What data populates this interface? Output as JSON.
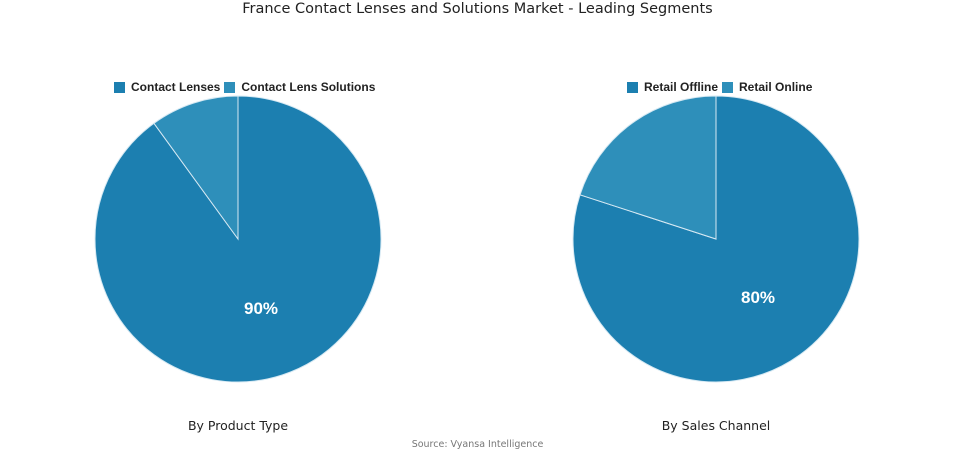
{
  "title": "France Contact Lenses and Solutions Market - Leading Segments",
  "source": "Source: Vyansa Intelligence",
  "colors": {
    "primary": "#1c7fb0",
    "secondary": "#2e8fba"
  },
  "charts": [
    {
      "subtitle": "By Product Type",
      "legend": [
        "Contact Lenses",
        "Contact Lens Solutions"
      ],
      "label": "90%"
    },
    {
      "subtitle": "By Sales Channel",
      "legend": [
        "Retail Offline",
        "Retail Online"
      ],
      "label": "80%"
    }
  ],
  "chart_data": [
    {
      "type": "pie",
      "title": "By Product Type",
      "categories": [
        "Contact Lenses",
        "Contact Lens Solutions"
      ],
      "values": [
        90,
        10
      ],
      "data_labels": [
        "90%",
        ""
      ],
      "legend_position": "top"
    },
    {
      "type": "pie",
      "title": "By Sales Channel",
      "categories": [
        "Retail Offline",
        "Retail Online"
      ],
      "values": [
        80,
        20
      ],
      "data_labels": [
        "80%",
        ""
      ],
      "legend_position": "top"
    }
  ]
}
